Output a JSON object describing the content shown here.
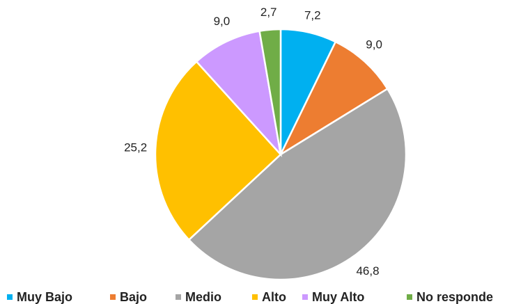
{
  "chart_data": {
    "type": "pie",
    "categories": [
      "Muy Bajo",
      "Bajo",
      "Medio",
      "Alto",
      "Muy Alto",
      "No responde"
    ],
    "values": [
      7.2,
      9.0,
      46.8,
      25.2,
      9.0,
      2.7
    ],
    "value_labels": [
      "7,2",
      "9,0",
      "46,8",
      "25,2",
      "9,0",
      "2,7"
    ],
    "colors": [
      "#00b0f0",
      "#ed7d31",
      "#a5a5a5",
      "#ffc000",
      "#cc99ff",
      "#70ad47"
    ],
    "legend": "bottom"
  }
}
